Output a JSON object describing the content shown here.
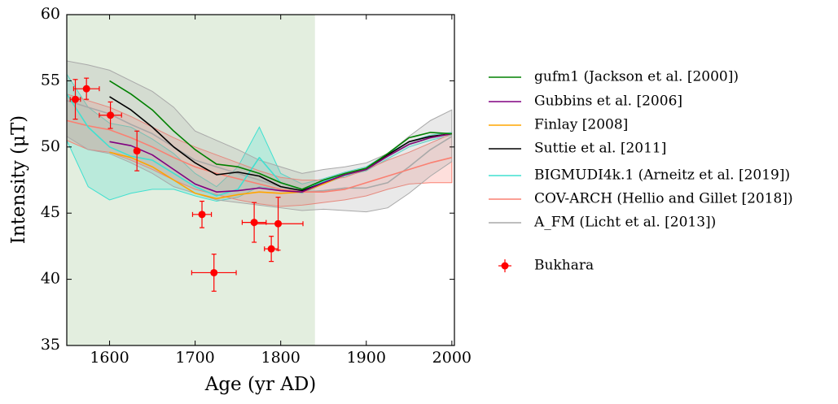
{
  "chart_data": {
    "type": "line",
    "xlabel": "Age (yr AD)",
    "ylabel": "Intensity (μT)",
    "xlim": [
      1550,
      2003
    ],
    "ylim": [
      35,
      60
    ],
    "xticks": [
      1600,
      1700,
      1800,
      1900,
      2000
    ],
    "yticks": [
      35,
      40,
      45,
      50,
      55,
      60
    ],
    "shade": {
      "span": [
        1550,
        1840
      ],
      "color": "#e3eedf"
    },
    "x": [
      1550,
      1575,
      1600,
      1625,
      1650,
      1675,
      1700,
      1725,
      1750,
      1775,
      1800,
      1825,
      1850,
      1875,
      1900,
      1925,
      1950,
      1975,
      2000
    ],
    "series": [
      {
        "name": "gufm1 (Jackson et al. [2000])",
        "color": "#008000",
        "values": [
          null,
          null,
          55.0,
          54.0,
          52.8,
          51.2,
          49.8,
          48.7,
          48.5,
          48.0,
          47.3,
          46.8,
          47.5,
          48.0,
          48.4,
          49.5,
          50.7,
          51.1,
          51.0
        ]
      },
      {
        "name": "Gubbins et al. [2006]",
        "color": "#800080",
        "values": [
          null,
          null,
          50.4,
          50.1,
          49.4,
          48.3,
          47.2,
          46.6,
          46.7,
          46.9,
          46.7,
          46.6,
          47.3,
          47.9,
          48.3,
          49.3,
          50.2,
          50.7,
          51.0
        ]
      },
      {
        "name": "Finlay [2008]",
        "color": "#ffa500",
        "values": [
          null,
          null,
          49.6,
          49.2,
          48.5,
          47.5,
          46.5,
          46.1,
          46.4,
          46.6,
          46.5,
          46.6,
          47.2,
          47.9,
          48.3,
          49.3,
          50.2,
          50.7,
          51.0
        ]
      },
      {
        "name": "Suttie et al. [2011]",
        "color": "#000000",
        "values": [
          null,
          null,
          53.8,
          52.8,
          51.5,
          50.0,
          48.8,
          47.9,
          48.1,
          47.8,
          47.0,
          46.7,
          47.3,
          47.9,
          48.3,
          49.4,
          50.4,
          50.8,
          51.0
        ]
      },
      {
        "name": "BIGMUDI4k.1 (Arneitz et al. [2019])",
        "color": "#40e0d0",
        "values": [
          54.0,
          51.5,
          50.0,
          49.3,
          49.0,
          48.0,
          47.0,
          46.3,
          46.8,
          49.2,
          47.3,
          46.8,
          47.4,
          47.9,
          48.3,
          49.3,
          50.2,
          50.7,
          51.0
        ],
        "lower": [
          50.5,
          47.0,
          46.0,
          46.5,
          46.8,
          46.8,
          46.3,
          45.9,
          46.2,
          47.0,
          46.8,
          46.5,
          47.2,
          47.8,
          48.2,
          49.1,
          50.0,
          50.5,
          50.9
        ],
        "upper": [
          55.5,
          53.0,
          51.8,
          51.5,
          50.6,
          49.5,
          48.0,
          47.0,
          48.5,
          51.5,
          48.0,
          47.2,
          47.6,
          48.1,
          48.5,
          49.5,
          50.4,
          50.9,
          51.1
        ]
      },
      {
        "name": "COV-ARCH (Hellio and Gillet [2018])",
        "color": "#fa8072",
        "values": [
          52.0,
          51.6,
          51.3,
          50.7,
          50.0,
          49.2,
          48.5,
          48.0,
          47.6,
          47.2,
          46.8,
          46.6,
          46.6,
          46.8,
          47.3,
          47.8,
          48.3,
          48.8,
          49.2
        ],
        "lower": [
          50.5,
          49.8,
          49.6,
          49.0,
          48.3,
          47.5,
          46.8,
          46.4,
          46.0,
          45.7,
          45.5,
          45.6,
          45.8,
          46.0,
          46.3,
          46.8,
          47.2,
          47.3,
          47.3
        ],
        "upper": [
          54.0,
          53.5,
          53.0,
          52.3,
          51.5,
          50.7,
          50.0,
          49.4,
          48.8,
          48.2,
          47.7,
          47.5,
          47.5,
          47.7,
          48.3,
          49.0,
          49.6,
          50.3,
          51.0
        ]
      },
      {
        "name": "A_FM (Licht et al. [2013])",
        "color": "#a9a9a9",
        "values": [
          53.5,
          53.0,
          52.5,
          51.7,
          51.0,
          50.0,
          49.0,
          48.5,
          48.0,
          47.5,
          47.0,
          46.6,
          46.7,
          46.9,
          46.9,
          47.3,
          48.5,
          49.8,
          50.8
        ],
        "lower": [
          50.8,
          49.8,
          49.5,
          48.8,
          48.0,
          47.0,
          46.5,
          46.0,
          45.8,
          45.6,
          45.4,
          45.2,
          45.3,
          45.2,
          45.1,
          45.4,
          46.5,
          47.8,
          48.9
        ],
        "upper": [
          56.5,
          56.2,
          55.8,
          55.0,
          54.2,
          53.0,
          51.2,
          50.5,
          49.8,
          49.0,
          48.5,
          48.0,
          48.3,
          48.5,
          48.8,
          49.5,
          50.8,
          52.0,
          52.8
        ]
      }
    ],
    "points": {
      "name": "Bukhara",
      "color": "#ff0000",
      "x": [
        1560,
        1573,
        1601,
        1632,
        1708,
        1722,
        1769,
        1789,
        1797
      ],
      "xerr": [
        6,
        15,
        13,
        3,
        11,
        26,
        14,
        8,
        29
      ],
      "y": [
        53.6,
        54.4,
        52.4,
        49.7,
        44.9,
        40.5,
        44.3,
        42.3,
        44.2
      ],
      "yerr": [
        1.5,
        0.8,
        1.0,
        1.5,
        1.0,
        1.4,
        1.5,
        0.95,
        2.0
      ]
    },
    "legend": "right"
  }
}
